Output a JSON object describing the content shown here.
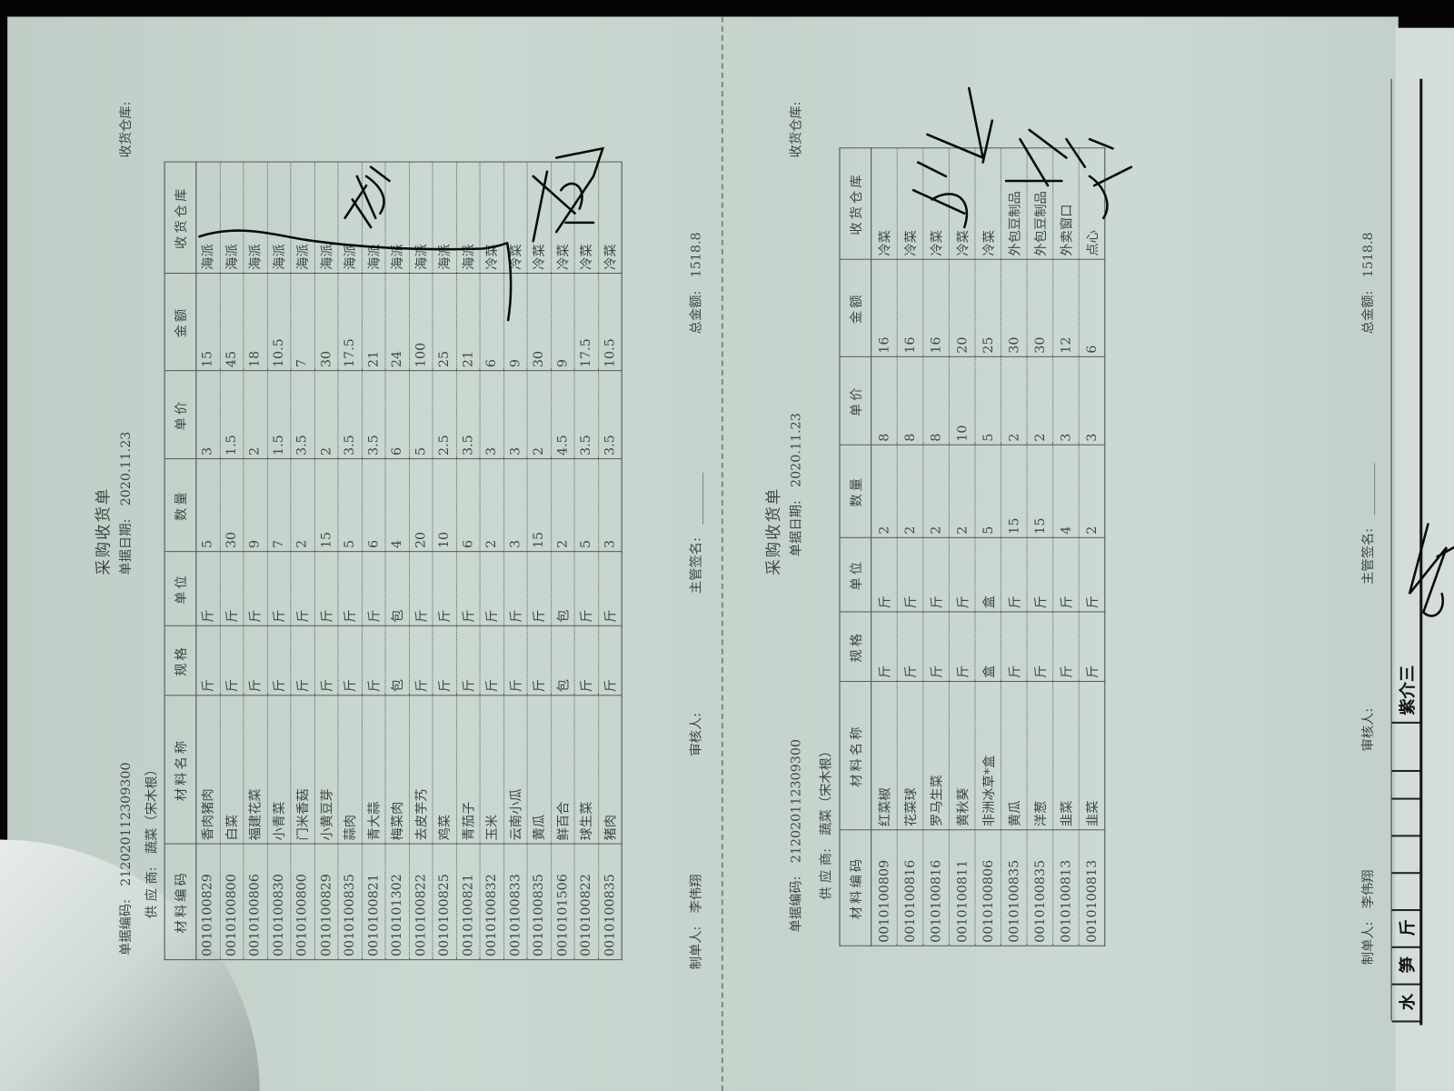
{
  "left_form": {
    "title": "采购收货单",
    "doc_code_label": "单据编码:",
    "doc_code": "212020112309300",
    "doc_date_label": "单据日期:",
    "doc_date": "2020.11.23",
    "warehouse_label": "收货仓库:",
    "supplier_label": "供 应 商:",
    "supplier": "蔬菜（宋木根）",
    "columns": [
      "材料编码",
      "材料名称",
      "规格",
      "单位",
      "数量",
      "单价",
      "金额",
      "收货仓库"
    ],
    "rows": [
      [
        "0010100829",
        "香肉猪肉",
        "斤",
        "斤",
        "5",
        "3",
        "15",
        "海派"
      ],
      [
        "0010100800",
        "白菜",
        "斤",
        "斤",
        "30",
        "1.5",
        "45",
        "海派"
      ],
      [
        "0010100806",
        "福建花菜",
        "斤",
        "斤",
        "9",
        "2",
        "18",
        "海派"
      ],
      [
        "0010100830",
        "小青菜",
        "斤",
        "斤",
        "7",
        "1.5",
        "10.5",
        "海派"
      ],
      [
        "0010100800",
        "门米香菇",
        "斤",
        "斤",
        "2",
        "3.5",
        "7",
        "海派"
      ],
      [
        "0010100829",
        "小黄豆芽",
        "斤",
        "斤",
        "15",
        "2",
        "30",
        "海派"
      ],
      [
        "0010100835",
        "蒜肉",
        "斤",
        "斤",
        "5",
        "3.5",
        "17.5",
        "海派"
      ],
      [
        "0010100821",
        "青大蒜",
        "斤",
        "斤",
        "6",
        "3.5",
        "21",
        "海派"
      ],
      [
        "0010101302",
        "梅菜肉",
        "包",
        "包",
        "4",
        "6",
        "24",
        "海派"
      ],
      [
        "0010100822",
        "去皮芋艿",
        "斤",
        "斤",
        "20",
        "5",
        "100",
        "海派"
      ],
      [
        "0010100825",
        "鸡菜",
        "斤",
        "斤",
        "10",
        "2.5",
        "25",
        "海派"
      ],
      [
        "0010100821",
        "青茄子",
        "斤",
        "斤",
        "6",
        "3.5",
        "21",
        "海派"
      ],
      [
        "0010100832",
        "玉米",
        "斤",
        "斤",
        "2",
        "3",
        "6",
        "冷菜"
      ],
      [
        "0010100833",
        "云南小瓜",
        "斤",
        "斤",
        "3",
        "3",
        "9",
        "冷菜"
      ],
      [
        "0010100835",
        "黄瓜",
        "斤",
        "斤",
        "15",
        "2",
        "30",
        "冷菜"
      ],
      [
        "0010101506",
        "鲜百合",
        "包",
        "包",
        "2",
        "4.5",
        "9",
        "冷菜"
      ],
      [
        "0010100822",
        "球生菜",
        "斤",
        "斤",
        "5",
        "3.5",
        "17.5",
        "冷菜"
      ],
      [
        "0010100835",
        "猪肉",
        "斤",
        "斤",
        "3",
        "3.5",
        "10.5",
        "冷菜"
      ]
    ],
    "maker_label": "制单人:",
    "maker": "李伟翔",
    "reviewer_label": "审核人:",
    "supervisor_label": "主管签名:",
    "total_label": "总金额:",
    "total": "1518.8"
  },
  "right_form": {
    "title": "采购收货单",
    "doc_code_label": "单据编码:",
    "doc_code": "212020112309300",
    "doc_date_label": "单据日期:",
    "doc_date": "2020.11.23",
    "warehouse_label": "收货仓库:",
    "supplier_label": "供 应 商:",
    "supplier": "蔬菜（宋木根）",
    "columns": [
      "材料编码",
      "材料名称",
      "规格",
      "单位",
      "数量",
      "单价",
      "金额",
      "收货仓库"
    ],
    "rows": [
      [
        "0010100809",
        "红菜椒",
        "斤",
        "斤",
        "2",
        "8",
        "16",
        "冷菜"
      ],
      [
        "0010100816",
        "花菜球",
        "斤",
        "斤",
        "2",
        "8",
        "16",
        "冷菜"
      ],
      [
        "0010100816",
        "罗马生菜",
        "斤",
        "斤",
        "2",
        "8",
        "16",
        "冷菜"
      ],
      [
        "0010100811",
        "黄秋葵",
        "斤",
        "斤",
        "2",
        "10",
        "20",
        "冷菜"
      ],
      [
        "0010100806",
        "非洲冰草*盒",
        "盒",
        "盒",
        "5",
        "5",
        "25",
        "冷菜"
      ],
      [
        "0010100835",
        "黄瓜",
        "斤",
        "斤",
        "15",
        "2",
        "30",
        "外包豆制品"
      ],
      [
        "0010100835",
        "洋葱",
        "斤",
        "斤",
        "15",
        "2",
        "30",
        "外包豆制品"
      ],
      [
        "0010100813",
        "韭菜",
        "斤",
        "斤",
        "4",
        "3",
        "12",
        "外卖窗口"
      ],
      [
        "0010100813",
        "韭菜",
        "斤",
        "斤",
        "2",
        "3",
        "6",
        "点心"
      ]
    ],
    "maker_label": "制单人:",
    "maker": "李伟翔",
    "reviewer_label": "审核人:",
    "supervisor_label": "主管签名:",
    "total_label": "总金额:",
    "total": "1518.8"
  },
  "side_strip": {
    "cells": [
      "水",
      "笋",
      "斤",
      "紫介三"
    ]
  },
  "colors": {
    "paper": "#c9d6cf",
    "print": "#3d4843",
    "ink": "#0a0a0a"
  }
}
